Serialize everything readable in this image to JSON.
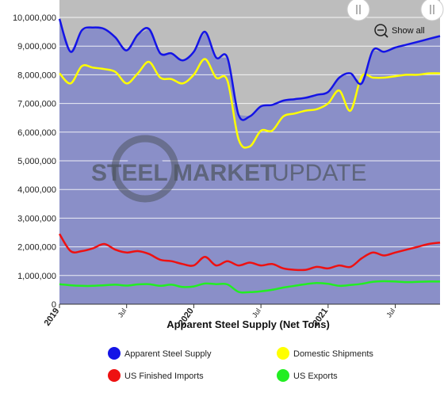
{
  "chart_data": {
    "type": "area",
    "title": "Apparent Steel Supply (Net Tons)",
    "xlabel": "",
    "ylabel": "",
    "ylim": [
      0,
      10000000
    ],
    "y_ticks": [
      "0",
      "1,000,000",
      "2,000,000",
      "3,000,000",
      "4,000,000",
      "5,000,000",
      "6,000,000",
      "7,000,000",
      "8,000,000",
      "9,000,000",
      "10,000,000"
    ],
    "x_range": [
      "2019-01",
      "2021-11"
    ],
    "x_ticks": [
      {
        "label": "2019",
        "major": true,
        "month": 0
      },
      {
        "label": "Jul",
        "major": false,
        "month": 6
      },
      {
        "label": "2020",
        "major": true,
        "month": 12
      },
      {
        "label": "Jul",
        "major": false,
        "month": 18
      },
      {
        "label": "2021",
        "major": true,
        "month": 24
      },
      {
        "label": "Jul",
        "major": false,
        "month": 30
      }
    ],
    "x": [
      "2019-01",
      "2019-02",
      "2019-03",
      "2019-04",
      "2019-05",
      "2019-06",
      "2019-07",
      "2019-08",
      "2019-09",
      "2019-10",
      "2019-11",
      "2019-12",
      "2020-01",
      "2020-02",
      "2020-03",
      "2020-04",
      "2020-05",
      "2020-06",
      "2020-07",
      "2020-08",
      "2020-09",
      "2020-10",
      "2020-11",
      "2020-12",
      "2021-01",
      "2021-02",
      "2021-03",
      "2021-04",
      "2021-05",
      "2021-06",
      "2021-07",
      "2021-08",
      "2021-09",
      "2021-10",
      "2021-11"
    ],
    "series": [
      {
        "name": "Apparent Steel Supply",
        "color": "#1414e6",
        "values": [
          9950000,
          8800000,
          9550000,
          9650000,
          9600000,
          9300000,
          8850000,
          9400000,
          9600000,
          8750000,
          8750000,
          8500000,
          8800000,
          9500000,
          8600000,
          8600000,
          6600000,
          6550000,
          6900000,
          6950000,
          7100000,
          7150000,
          7200000,
          7300000,
          7400000,
          7900000,
          8050000,
          7700000,
          8850000,
          8800000,
          8950000,
          9050000,
          9150000,
          9250000,
          9350000
        ]
      },
      {
        "name": "Domestic Shipments",
        "color": "#ffff00",
        "values": [
          8050000,
          7700000,
          8300000,
          8250000,
          8200000,
          8100000,
          7700000,
          8050000,
          8450000,
          7900000,
          7850000,
          7700000,
          8000000,
          8550000,
          7900000,
          7800000,
          5750000,
          5500000,
          6050000,
          6050000,
          6550000,
          6650000,
          6750000,
          6800000,
          7000000,
          7450000,
          6750000,
          7950000,
          7900000,
          7900000,
          7950000,
          8000000,
          8000000,
          8050000,
          8050000
        ]
      },
      {
        "name": "US Finished Imports",
        "color": "#ee1111",
        "values": [
          2450000,
          1850000,
          1850000,
          1950000,
          2100000,
          1900000,
          1800000,
          1850000,
          1750000,
          1550000,
          1500000,
          1400000,
          1350000,
          1650000,
          1350000,
          1500000,
          1350000,
          1450000,
          1350000,
          1400000,
          1250000,
          1200000,
          1200000,
          1300000,
          1250000,
          1350000,
          1300000,
          1600000,
          1800000,
          1700000,
          1800000,
          1900000,
          2000000,
          2100000,
          2150000
        ]
      },
      {
        "name": "US Exports",
        "color": "#22ee22",
        "values": [
          700000,
          660000,
          640000,
          640000,
          660000,
          680000,
          650000,
          690000,
          700000,
          640000,
          680000,
          600000,
          620000,
          720000,
          700000,
          690000,
          430000,
          420000,
          450000,
          500000,
          580000,
          640000,
          700000,
          740000,
          710000,
          640000,
          670000,
          710000,
          780000,
          800000,
          790000,
          770000,
          780000,
          790000,
          790000
        ]
      }
    ],
    "legend_placement": "bottom",
    "grid": true
  },
  "watermark": {
    "bold": "STEEL",
    "mid": "MARKET",
    "light": "UPDATE"
  },
  "zoom_control": {
    "label": "Show all"
  },
  "colors": {
    "plot_fill": "#8a8fc8",
    "navigator_fill": "#bdbdbd",
    "grid": "#ffffff"
  }
}
